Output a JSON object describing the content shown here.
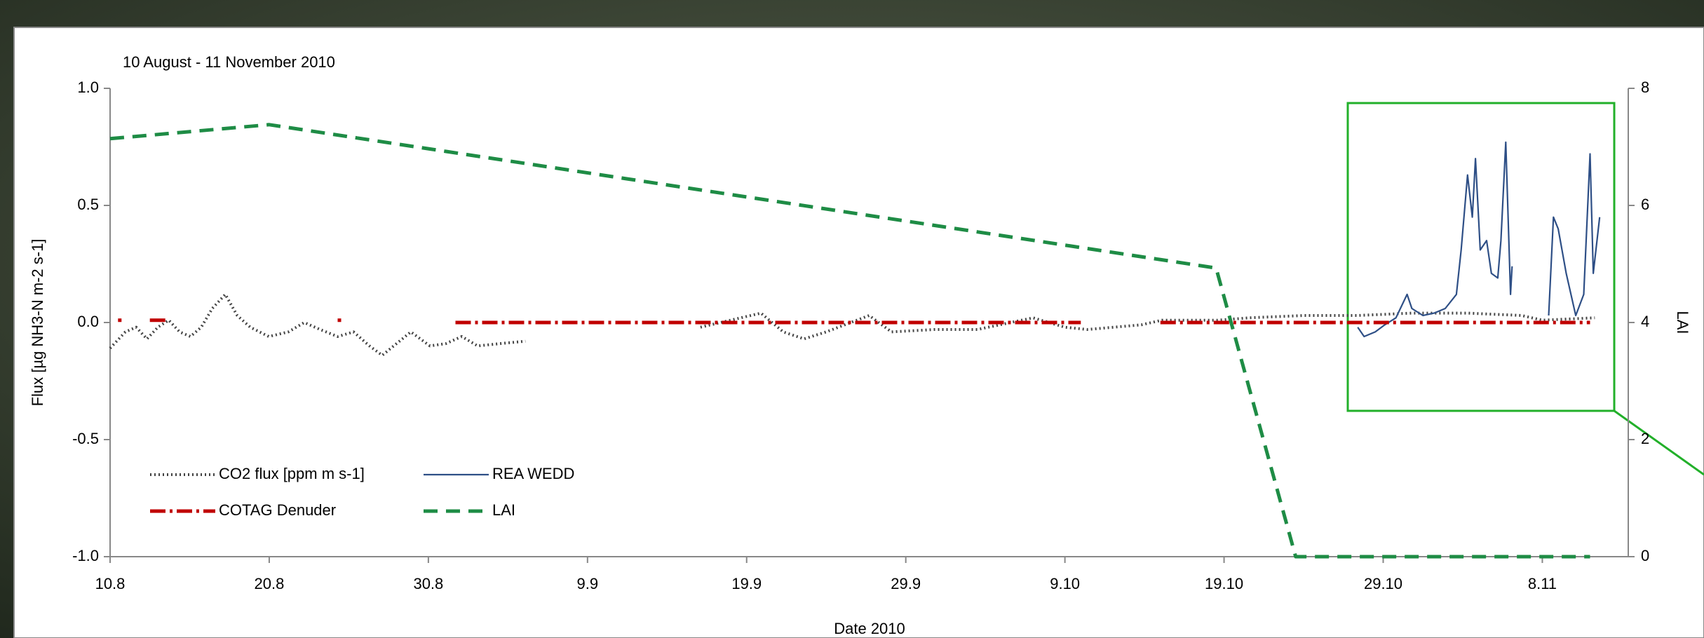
{
  "chart_data": {
    "type": "line",
    "title": "10 August - 11 November 2010",
    "x_label": "Date 2010",
    "y_label": "Flux [µg NH3-N m-2 s-1]",
    "y2_label": "LAI",
    "xlim": [
      0,
      95.4
    ],
    "xticks": [
      {
        "value": 0,
        "label": "10.8"
      },
      {
        "value": 10,
        "label": "20.8"
      },
      {
        "value": 20,
        "label": "30.8"
      },
      {
        "value": 30,
        "label": "9.9"
      },
      {
        "value": 40,
        "label": "19.9"
      },
      {
        "value": 50,
        "label": "29.9"
      },
      {
        "value": 60,
        "label": "9.10"
      },
      {
        "value": 70,
        "label": "19.10"
      },
      {
        "value": 80,
        "label": "29.10"
      },
      {
        "value": 90,
        "label": "8.11"
      }
    ],
    "ylim": [
      -1,
      1
    ],
    "yticks": [
      {
        "value": -1,
        "label": "-1.0"
      },
      {
        "value": -0.5,
        "label": "-0.5"
      },
      {
        "value": 0,
        "label": "0.0"
      },
      {
        "value": 0.5,
        "label": "0.5"
      },
      {
        "value": 1,
        "label": "1.0"
      }
    ],
    "y2lim": [
      0,
      8
    ],
    "y2ticks": [
      0,
      2,
      4,
      6,
      8
    ],
    "grid": false,
    "legend": "lower-left",
    "series": [
      {
        "name": "CO2 flux [ppm m s-1]",
        "color": "#444444",
        "style": "dotted",
        "x": [
          0,
          0.96,
          1.64,
          2.32,
          3.0,
          3.69,
          4.37,
          5.05,
          5.73,
          6.42,
          7.24,
          7.99,
          8.81,
          9.97,
          11.2,
          12.2,
          13.2,
          14.3,
          15.3,
          16.3,
          17.1,
          18.0,
          18.9,
          20.1,
          21.1,
          22.1,
          23.1,
          24.5,
          26.1,
          31.5,
          37.1,
          40.9,
          42.3,
          43.6,
          45.0,
          47.7,
          49.1,
          51.8,
          54.5,
          58.0,
          60.0,
          61.4,
          64.8,
          66.1,
          69.6,
          71.6,
          75.0,
          78.4,
          81.8,
          85.3,
          88.7,
          90.0,
          93.3
        ],
        "values": [
          -0.11,
          -0.04,
          -0.02,
          -0.07,
          -0.02,
          0.01,
          -0.04,
          -0.06,
          -0.02,
          0.06,
          0.12,
          0.03,
          -0.02,
          -0.06,
          -0.04,
          0.0,
          -0.03,
          -0.06,
          -0.04,
          -0.1,
          -0.14,
          -0.09,
          -0.04,
          -0.1,
          -0.09,
          -0.06,
          -0.1,
          -0.09,
          -0.08,
          null,
          -0.02,
          0.04,
          -0.04,
          -0.07,
          -0.04,
          0.03,
          -0.04,
          -0.03,
          -0.03,
          0.02,
          -0.02,
          -0.03,
          -0.01,
          0.01,
          0.01,
          0.02,
          0.03,
          0.03,
          0.04,
          0.04,
          0.03,
          0.01,
          0.02
        ]
      },
      {
        "name": "REA WEDD",
        "color": "#2e4f86",
        "style": "solid",
        "x": [
          78.4,
          78.8,
          79.5,
          80.1,
          80.8,
          81.5,
          81.8,
          82.5,
          83.2,
          83.9,
          84.6,
          84.9,
          85.3,
          85.6,
          85.8,
          86.1,
          86.5,
          86.8,
          87.2,
          87.4,
          87.7,
          88.0,
          88.1,
          89.0,
          90.4,
          90.7,
          91.0,
          91.5,
          92.1,
          92.6,
          93.0,
          93.2,
          93.6
        ],
        "values": [
          -0.02,
          -0.06,
          -0.04,
          -0.01,
          0.02,
          0.12,
          0.06,
          0.03,
          0.04,
          0.06,
          0.12,
          0.31,
          0.63,
          0.45,
          0.7,
          0.31,
          0.35,
          0.21,
          0.19,
          0.35,
          0.77,
          0.12,
          0.24,
          null,
          0.03,
          0.45,
          0.4,
          0.21,
          0.03,
          0.12,
          0.72,
          0.21,
          0.45
        ]
      },
      {
        "name": "COTAG Denuder",
        "color": "#c00000",
        "style": "dashdot",
        "x": [
          0.5,
          1.2,
          2.5,
          3.6,
          4.2,
          14.3,
          15.0,
          21.7,
          61.0,
          62.0,
          66.0,
          93.0
        ],
        "values": [
          0.01,
          null,
          0.01,
          0.01,
          null,
          0.01,
          null,
          0,
          0,
          null,
          0,
          0
        ]
      },
      {
        "name": "LAI",
        "color": "#1e8c45",
        "style": "dashed",
        "axis": "y2",
        "x": [
          0,
          10,
          69.5,
          74.5,
          93
        ],
        "values": [
          7.14,
          7.38,
          4.93,
          0,
          0
        ]
      }
    ]
  }
}
